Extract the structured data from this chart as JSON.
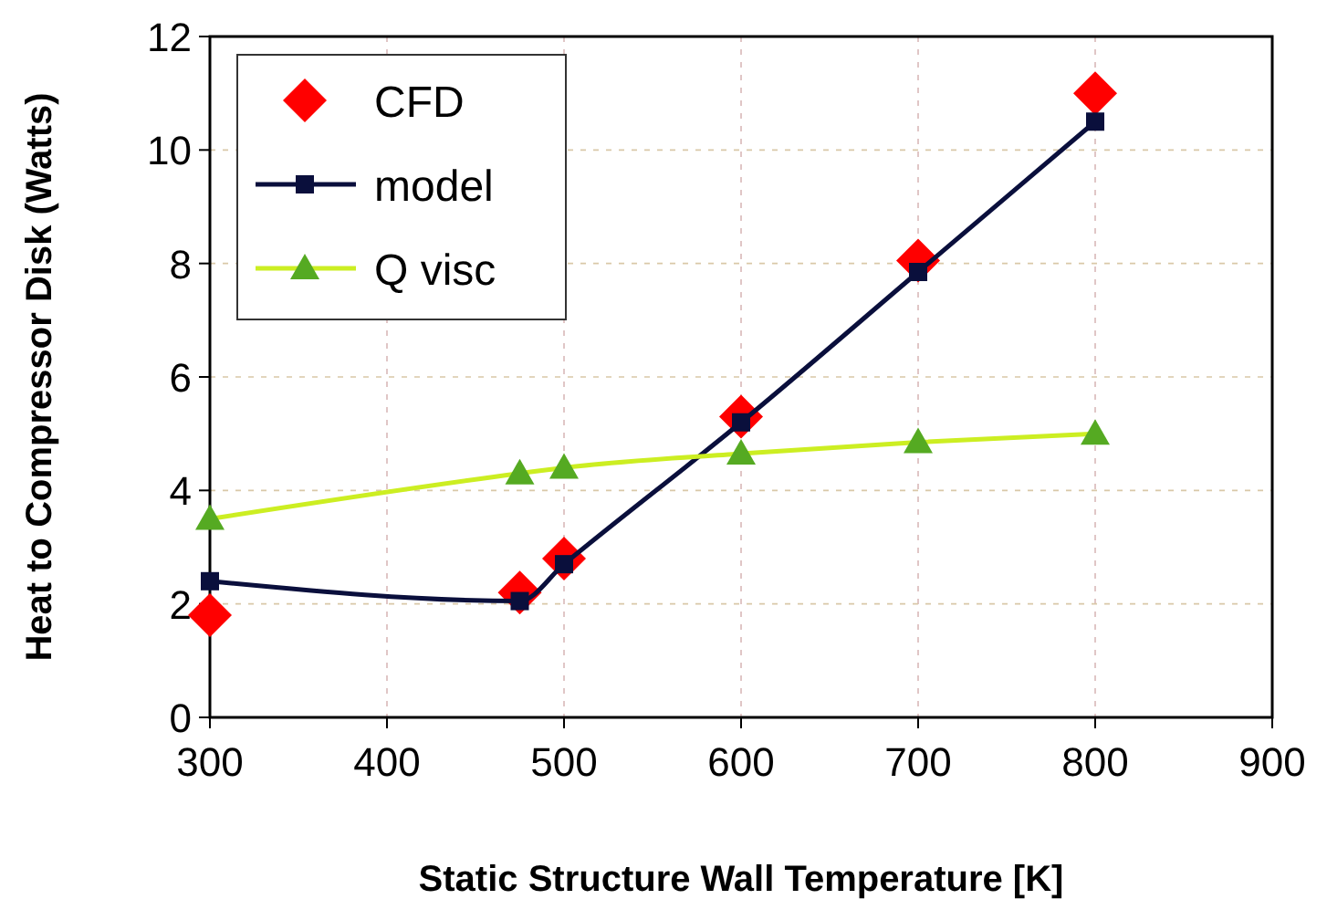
{
  "chart_data": {
    "type": "line",
    "xlabel": "Static Structure Wall Temperature [K]",
    "ylabel": "Heat to Compressor Disk (Watts)",
    "x": [
      300,
      475,
      500,
      600,
      700,
      800
    ],
    "series": [
      {
        "name": "CFD",
        "type": "scatter",
        "color": "#ff0000",
        "marker": "diamond",
        "values": [
          1.8,
          2.2,
          2.8,
          5.3,
          8.05,
          11.0
        ]
      },
      {
        "name": "model",
        "color": "#0a0f3c",
        "marker": "square",
        "values": [
          2.4,
          2.05,
          2.7,
          5.2,
          7.85,
          10.5
        ]
      },
      {
        "name": "Q visc",
        "color": "#ccee22",
        "marker": "triangle",
        "values": [
          3.5,
          4.3,
          4.4,
          4.65,
          4.85,
          5.0
        ]
      }
    ],
    "xlim": [
      300,
      900
    ],
    "xticks": [
      300,
      400,
      500,
      600,
      700,
      800,
      900
    ],
    "ylim": [
      0,
      12
    ],
    "yticks": [
      0,
      2,
      4,
      6,
      8,
      10,
      12
    ],
    "grid": true,
    "legend": "top left"
  }
}
